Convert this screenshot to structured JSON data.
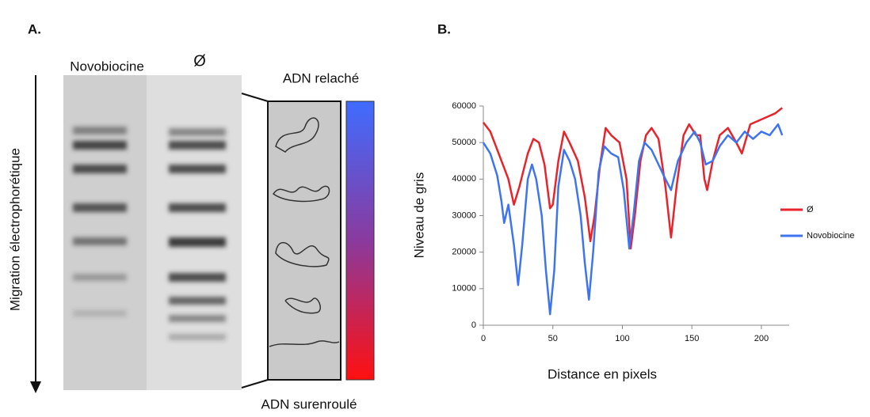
{
  "panel_a": {
    "label": "A.",
    "lanes": [
      "Novobiocine",
      "Ø"
    ],
    "axis_label": "Migration électrophorétique",
    "top_label": "ADN relaché",
    "bottom_label": "ADN surenroulé"
  },
  "panel_b": {
    "label": "B."
  },
  "chart_data": {
    "type": "line",
    "x_label": "Distance en pixels",
    "y_label": "Niveau de gris",
    "xlim": [
      0,
      220
    ],
    "xticks": [
      0,
      50,
      100,
      150,
      200
    ],
    "ylim": [
      0,
      60000
    ],
    "yticks": [
      0,
      10000,
      20000,
      30000,
      40000,
      50000,
      60000
    ],
    "grid": false,
    "legend": "right",
    "series": [
      {
        "name": "Ø",
        "color": "#e8232b",
        "x": [
          0,
          5,
          12,
          18,
          22,
          26,
          32,
          36,
          40,
          44,
          48,
          50,
          54,
          58,
          62,
          68,
          73,
          77,
          80,
          84,
          88,
          92,
          98,
          103,
          106,
          109,
          113,
          117,
          121,
          126,
          131,
          135,
          139,
          144,
          148,
          153,
          156,
          159,
          161,
          165,
          170,
          176,
          182,
          186,
          192,
          198,
          204,
          210,
          215
        ],
        "values": [
          55500,
          53000,
          46000,
          40000,
          33000,
          38000,
          47000,
          51000,
          50000,
          44000,
          32000,
          33000,
          45000,
          53000,
          50000,
          45000,
          35000,
          23000,
          30000,
          44000,
          54000,
          52000,
          50000,
          40000,
          21000,
          30000,
          45000,
          52000,
          54000,
          51000,
          38000,
          24000,
          38000,
          52000,
          55000,
          52000,
          52000,
          40000,
          37000,
          45000,
          52000,
          54000,
          50000,
          47000,
          55000,
          56000,
          57000,
          58000,
          59500
        ]
      },
      {
        "name": "Novobiocine",
        "color": "#3f74f0",
        "x": [
          0,
          5,
          10,
          13,
          15,
          18,
          22,
          25,
          28,
          32,
          35,
          38,
          42,
          45,
          48,
          51,
          54,
          58,
          62,
          66,
          70,
          73,
          76,
          79,
          83,
          87,
          92,
          97,
          101,
          105,
          108,
          112,
          116,
          121,
          126,
          131,
          135,
          140,
          146,
          152,
          156,
          160,
          165,
          170,
          176,
          182,
          188,
          194,
          200,
          206,
          212,
          215
        ],
        "values": [
          50000,
          47000,
          41000,
          34000,
          28000,
          33000,
          22000,
          11000,
          22000,
          40000,
          44000,
          40000,
          30000,
          15000,
          3000,
          15000,
          38000,
          48000,
          45000,
          40000,
          30000,
          17000,
          7000,
          20000,
          42000,
          49000,
          47000,
          46000,
          37000,
          21000,
          30000,
          45000,
          50000,
          48000,
          44000,
          40000,
          37000,
          45000,
          50000,
          53000,
          50000,
          44000,
          45000,
          49000,
          52000,
          50000,
          53000,
          51000,
          53000,
          52000,
          55000,
          52000
        ]
      }
    ]
  }
}
